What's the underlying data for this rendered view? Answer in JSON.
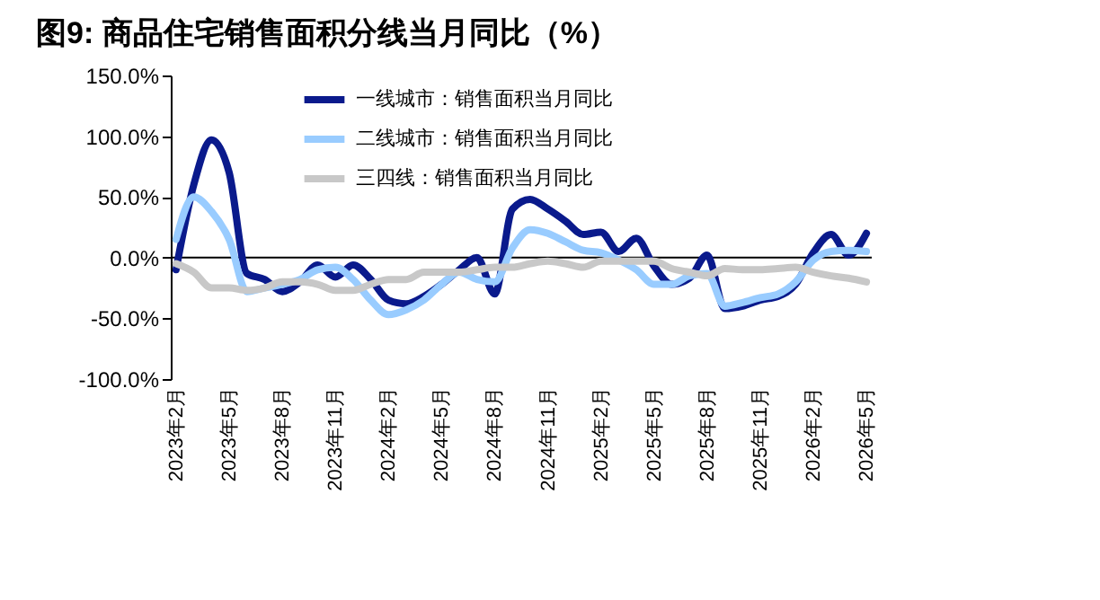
{
  "chart_data": {
    "type": "line",
    "title": "图9:  商品住宅销售面积分线当月同比（%）",
    "categories": [
      "2023年2月",
      null,
      null,
      "2023年5月",
      null,
      null,
      "2023年8月",
      null,
      null,
      "2023年11月",
      null,
      null,
      "2024年2月",
      null,
      null,
      "2024年5月",
      null,
      null,
      "2024年8月",
      null,
      null,
      "2024年11月",
      null,
      null,
      "2025年2月",
      null,
      null,
      "2025年5月",
      null,
      null,
      "2025年8月",
      null,
      null,
      "2025年11月",
      null,
      null,
      "2026年2月",
      null,
      null,
      "2026年5月"
    ],
    "series": [
      {
        "name": "一线城市：销售面积当月同比",
        "color": "#0a1a8c",
        "values": [
          -10,
          60,
          97,
          70,
          -13,
          -18,
          -28,
          -20,
          -6,
          -16,
          -6,
          -18,
          -35,
          -38,
          -32,
          -22,
          -10,
          0,
          -30,
          40,
          48,
          40,
          30,
          19,
          21,
          5,
          16,
          -7,
          -22,
          -17,
          2,
          -42,
          -40,
          -35,
          -32,
          -22,
          4,
          19,
          2,
          20
        ]
      },
      {
        "name": "二线城市：销售面积当月同比",
        "color": "#99ccff",
        "values": [
          15,
          50,
          38,
          15,
          -28,
          -25,
          -22,
          -18,
          -10,
          -8,
          -18,
          -35,
          -47,
          -43,
          -35,
          -22,
          -12,
          -18,
          -20,
          8,
          23,
          20,
          13,
          6,
          4,
          -2,
          -10,
          -22,
          -22,
          -15,
          -13,
          -40,
          -37,
          -33,
          -30,
          -20,
          -2,
          5,
          6,
          5
        ]
      },
      {
        "name": "三四线：销售面积当月同比",
        "color": "#c8c8c8",
        "values": [
          -5,
          -12,
          -25,
          -25,
          -27,
          -25,
          -20,
          -20,
          -22,
          -27,
          -27,
          -22,
          -18,
          -18,
          -12,
          -12,
          -12,
          -10,
          -8,
          -8,
          -5,
          -3,
          -5,
          -8,
          -3,
          -3,
          -3,
          -3,
          -9,
          -12,
          -15,
          -9,
          -10,
          -10,
          -9,
          -8,
          -12,
          -15,
          -17,
          -20
        ]
      }
    ],
    "ylim": [
      -100,
      150
    ],
    "yticks": [
      {
        "value": -100,
        "label": "-100.0%"
      },
      {
        "value": -50,
        "label": "-50.0%"
      },
      {
        "value": 0,
        "label": "0.0%"
      },
      {
        "value": 50,
        "label": "50.0%"
      },
      {
        "value": 100,
        "label": "100.0%"
      },
      {
        "value": 150,
        "label": "150.0%"
      }
    ],
    "legend": "top",
    "marker": "none",
    "line_style": "solid"
  }
}
